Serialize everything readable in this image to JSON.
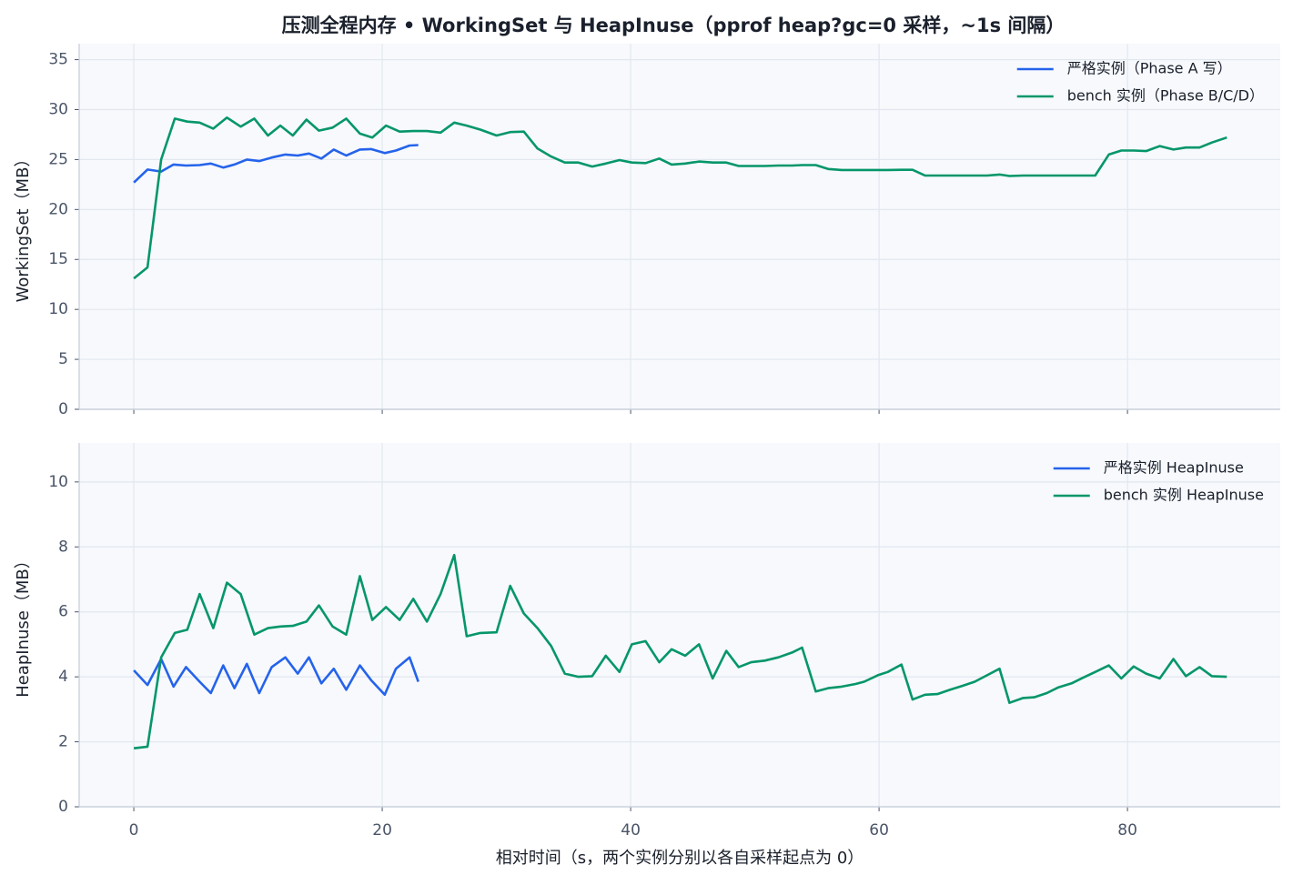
{
  "chart_data": [
    {
      "type": "line",
      "title": "压测全程内存 • WorkingSet 与 HeapInuse（pprof heap?gc=0 采样，~1s 间隔）",
      "y_label": "WorkingSet（MB）",
      "xlim": [
        -4.4,
        92.3
      ],
      "xticks": [
        0,
        20,
        40,
        60,
        80
      ],
      "ylim": [
        0,
        36.6
      ],
      "yticks": [
        0,
        5,
        10,
        15,
        20,
        25,
        30,
        35
      ],
      "grid": true,
      "legend": "upper right",
      "series": [
        {
          "name": "严格实例（Phase A 写）",
          "color": "#2563eb",
          "x": [
            0,
            1.1,
            2.2,
            3.2,
            4.2,
            5.3,
            6.2,
            7.2,
            8.1,
            9.1,
            10.1,
            11.1,
            12.2,
            13.2,
            14.1,
            15.1,
            16.1,
            17.1,
            18.2,
            19.1,
            20.2,
            21.1,
            22.2,
            22.9
          ],
          "values": [
            22.7,
            24.0,
            23.8,
            24.5,
            24.4,
            24.45,
            24.6,
            24.2,
            24.5,
            25.0,
            24.85,
            25.2,
            25.5,
            25.4,
            25.6,
            25.1,
            26.0,
            25.4,
            26.0,
            26.05,
            25.65,
            25.9,
            26.4,
            26.45
          ]
        },
        {
          "name": "bench 实例（Phase B/C/D）",
          "color": "#059669",
          "x": [
            0,
            1.1,
            2.2,
            3.3,
            4.3,
            5.3,
            6.4,
            7.5,
            8.6,
            9.7,
            10.8,
            11.8,
            12.8,
            13.9,
            14.9,
            16.0,
            17.1,
            18.2,
            19.2,
            20.3,
            21.4,
            22.5,
            23.6,
            24.7,
            25.8,
            26.8,
            27.9,
            29.2,
            30.3,
            31.4,
            32.5,
            33.6,
            34.7,
            35.8,
            36.9,
            38.0,
            39.1,
            40.1,
            41.2,
            42.3,
            43.3,
            44.4,
            45.5,
            46.6,
            47.7,
            48.7,
            49.7,
            50.8,
            51.9,
            53.0,
            53.8,
            54.9,
            55.9,
            57.0,
            58.1,
            58.8,
            59.9,
            60.7,
            61.8,
            62.7,
            63.7,
            64.7,
            65.7,
            66.7,
            67.7,
            68.7,
            69.7,
            70.5,
            71.6,
            72.5,
            73.5,
            74.4,
            75.5,
            76.4,
            77.4,
            78.5,
            79.5,
            80.5,
            81.5,
            82.6,
            83.7,
            84.7,
            85.8,
            86.8,
            88.0
          ],
          "values": [
            13.1,
            14.2,
            25.0,
            29.1,
            28.8,
            28.7,
            28.1,
            29.2,
            28.3,
            29.1,
            27.4,
            28.4,
            27.4,
            29.0,
            27.9,
            28.2,
            29.1,
            27.6,
            27.2,
            28.4,
            27.8,
            27.85,
            27.85,
            27.7,
            28.7,
            28.4,
            28.0,
            27.4,
            27.75,
            27.8,
            26.1,
            25.3,
            24.7,
            24.7,
            24.3,
            24.6,
            24.95,
            24.7,
            24.65,
            25.1,
            24.5,
            24.6,
            24.8,
            24.7,
            24.7,
            24.35,
            24.35,
            24.35,
            24.4,
            24.4,
            24.45,
            24.45,
            24.05,
            23.95,
            23.95,
            23.95,
            23.95,
            23.95,
            23.97,
            23.97,
            23.4,
            23.4,
            23.4,
            23.4,
            23.4,
            23.4,
            23.5,
            23.35,
            23.4,
            23.4,
            23.4,
            23.4,
            23.4,
            23.4,
            23.4,
            25.5,
            25.9,
            25.9,
            25.85,
            26.35,
            26.0,
            26.2,
            26.2,
            26.7,
            27.2
          ]
        }
      ]
    },
    {
      "type": "line",
      "y_label": "HeapInuse（MB）",
      "x_label": "相对时间（s，两个实例分别以各自采样起点为 0）",
      "xlim": [
        -4.4,
        92.3
      ],
      "xticks": [
        0,
        20,
        40,
        60,
        80
      ],
      "ylim": [
        0,
        11.2
      ],
      "yticks": [
        0,
        2,
        4,
        6,
        8,
        10
      ],
      "grid": true,
      "legend": "upper right",
      "series": [
        {
          "name": "严格实例 HeapInuse",
          "color": "#2563eb",
          "x": [
            0,
            1.1,
            2.2,
            3.2,
            4.2,
            5.3,
            6.2,
            7.2,
            8.1,
            9.1,
            10.1,
            11.1,
            12.2,
            13.2,
            14.1,
            15.1,
            16.1,
            17.1,
            18.2,
            19.1,
            20.2,
            21.1,
            22.2,
            22.9
          ],
          "values": [
            4.2,
            3.75,
            4.55,
            3.7,
            4.3,
            3.85,
            3.5,
            4.35,
            3.65,
            4.4,
            3.5,
            4.3,
            4.6,
            4.1,
            4.6,
            3.8,
            4.25,
            3.6,
            4.35,
            3.9,
            3.45,
            4.25,
            4.6,
            3.85
          ]
        },
        {
          "name": "bench 实例 HeapInuse",
          "color": "#059669",
          "x": [
            0,
            1.1,
            2.2,
            3.3,
            4.3,
            5.3,
            6.4,
            7.5,
            8.6,
            9.7,
            10.8,
            11.8,
            12.8,
            13.9,
            14.9,
            16.0,
            17.1,
            18.2,
            19.2,
            20.3,
            21.4,
            22.5,
            23.6,
            24.7,
            25.8,
            26.8,
            27.9,
            29.2,
            30.3,
            31.4,
            32.5,
            33.6,
            34.7,
            35.8,
            36.9,
            38.0,
            39.1,
            40.1,
            41.2,
            42.3,
            43.3,
            44.4,
            45.5,
            46.6,
            47.7,
            48.7,
            49.7,
            50.8,
            51.9,
            53.0,
            53.8,
            54.9,
            55.9,
            57.0,
            58.1,
            58.8,
            59.9,
            60.7,
            61.8,
            62.7,
            63.7,
            64.7,
            65.7,
            66.7,
            67.7,
            68.7,
            69.7,
            70.5,
            71.6,
            72.5,
            73.5,
            74.4,
            75.5,
            76.4,
            77.4,
            78.5,
            79.5,
            80.5,
            81.5,
            82.6,
            83.7,
            84.7,
            85.8,
            86.8,
            88.0
          ],
          "values": [
            1.8,
            1.85,
            4.6,
            5.35,
            5.45,
            6.55,
            5.5,
            6.9,
            6.55,
            5.3,
            5.5,
            5.55,
            5.57,
            5.7,
            6.2,
            5.55,
            5.3,
            7.1,
            5.75,
            6.15,
            5.75,
            6.4,
            5.7,
            6.55,
            7.75,
            5.25,
            5.35,
            5.37,
            6.8,
            5.95,
            5.5,
            4.95,
            4.1,
            4.0,
            4.02,
            4.65,
            4.15,
            5.0,
            5.1,
            4.45,
            4.85,
            4.65,
            5.0,
            3.95,
            4.8,
            4.3,
            4.45,
            4.5,
            4.6,
            4.75,
            4.9,
            3.55,
            3.65,
            3.7,
            3.78,
            3.85,
            4.05,
            4.15,
            4.38,
            3.3,
            3.45,
            3.47,
            3.6,
            3.72,
            3.85,
            4.05,
            4.25,
            3.2,
            3.35,
            3.37,
            3.5,
            3.67,
            3.8,
            3.97,
            4.15,
            4.35,
            3.95,
            4.32,
            4.1,
            3.95,
            4.55,
            4.02,
            4.3,
            4.02,
            4.0
          ]
        }
      ]
    }
  ]
}
